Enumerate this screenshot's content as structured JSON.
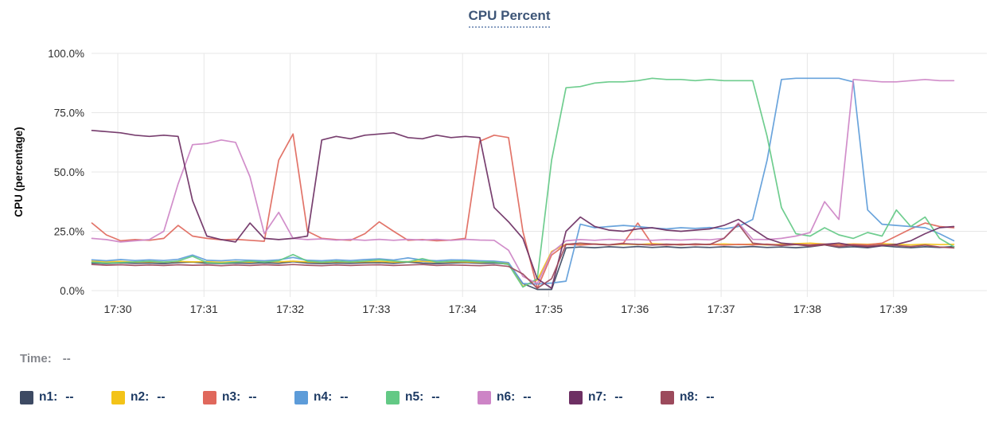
{
  "title": {
    "text": "CPU Percent"
  },
  "time_readout": {
    "label": "Time:",
    "value": "--"
  },
  "chart_data": {
    "type": "line",
    "title": "CPU Percent",
    "xlabel": "",
    "ylabel": "CPU (percentage)",
    "ylim": [
      0,
      100
    ],
    "grid": true,
    "legend_position": "bottom",
    "y_ticks": [
      {
        "label": "100.0%",
        "value": 100
      },
      {
        "label": "75.0%",
        "value": 75
      },
      {
        "label": "50.0%",
        "value": 50
      },
      {
        "label": "25.0%",
        "value": 25
      },
      {
        "label": "0.0%",
        "value": 0
      }
    ],
    "x_ticks": [
      "17:30",
      "17:31",
      "17:32",
      "17:33",
      "17:34",
      "17:35",
      "17:36",
      "17:37",
      "17:38",
      "17:39"
    ],
    "x_start_time": "17:29:40",
    "x_step_seconds": 10,
    "series": [
      {
        "name": "n1",
        "legend_value": "--",
        "color": "#3d4a63",
        "values": [
          11.6,
          11.4,
          11.7,
          11.5,
          11.6,
          11.4,
          11.8,
          12.0,
          11.5,
          11.4,
          11.6,
          11.5,
          11.7,
          11.5,
          12.2,
          11.6,
          11.4,
          11.6,
          11.5,
          11.7,
          11.8,
          11.5,
          12.0,
          11.6,
          11.4,
          11.6,
          11.8,
          11.5,
          11.6,
          11.2,
          3.0,
          0.5,
          0.5,
          18.0,
          18.4,
          18.1,
          18.5,
          18.2,
          18.6,
          18.2,
          18.5,
          18.1,
          18.4,
          18.2,
          18.5,
          18.3,
          18.6,
          18.2,
          18.4,
          18.1,
          18.5,
          19.3,
          18.2,
          18.5,
          18.1,
          18.9,
          18.4,
          18.1,
          18.5,
          18.2,
          18.6
        ]
      },
      {
        "name": "n2",
        "legend_value": "--",
        "color": "#f3c318",
        "values": [
          12.4,
          12.1,
          12.3,
          12.0,
          12.2,
          12.0,
          12.3,
          12.1,
          12.2,
          11.9,
          12.2,
          12.0,
          12.3,
          12.1,
          12.4,
          12.1,
          11.9,
          12.2,
          12.0,
          12.2,
          12.3,
          12.0,
          12.2,
          12.4,
          12.0,
          12.2,
          12.1,
          11.9,
          12.2,
          11.5,
          1.8,
          4.5,
          16.5,
          19.6,
          19.4,
          19.7,
          19.3,
          19.6,
          19.4,
          19.8,
          19.5,
          19.3,
          19.6,
          19.4,
          19.7,
          19.4,
          19.6,
          19.3,
          19.5,
          19.8,
          20.0,
          19.6,
          19.4,
          19.7,
          19.5,
          19.8,
          19.5,
          19.3,
          19.6,
          19.4,
          19.5
        ]
      },
      {
        "name": "n3",
        "legend_value": "--",
        "color": "#e0685c",
        "values": [
          28.5,
          23.5,
          21.0,
          21.5,
          21.2,
          22.0,
          27.5,
          23.0,
          22.0,
          21.4,
          21.6,
          21.2,
          20.8,
          55.0,
          66.0,
          25.0,
          22.0,
          21.5,
          21.2,
          24.0,
          29.0,
          25.0,
          21.2,
          21.5,
          21.0,
          21.3,
          22.0,
          63.0,
          65.5,
          64.5,
          25.0,
          1.0,
          15.0,
          19.5,
          19.2,
          19.6,
          19.3,
          20.0,
          28.5,
          19.5,
          19.2,
          19.6,
          19.3,
          19.6,
          19.2,
          19.5,
          19.3,
          19.6,
          19.2,
          19.5,
          19.3,
          19.6,
          19.2,
          19.5,
          19.3,
          20.0,
          23.0,
          26.0,
          28.5,
          27.0,
          26.5
        ]
      },
      {
        "name": "n4",
        "legend_value": "--",
        "color": "#5d9cd9",
        "values": [
          13.0,
          12.6,
          13.1,
          12.7,
          13.0,
          12.7,
          13.2,
          15.0,
          12.8,
          12.6,
          13.0,
          12.8,
          12.6,
          13.0,
          14.0,
          12.8,
          12.6,
          13.0,
          12.7,
          13.1,
          13.4,
          12.9,
          13.8,
          12.9,
          12.6,
          13.0,
          12.9,
          12.6,
          12.4,
          11.8,
          3.0,
          2.8,
          3.2,
          4.0,
          28.0,
          26.5,
          27.0,
          27.5,
          27.0,
          26.4,
          26.0,
          26.5,
          26.2,
          26.6,
          26.0,
          27.0,
          30.0,
          55.0,
          89.0,
          89.5,
          89.5,
          89.5,
          89.5,
          88.0,
          34.0,
          28.0,
          27.5,
          27.0,
          26.5,
          24.0,
          21.0
        ]
      },
      {
        "name": "n5",
        "legend_value": "--",
        "color": "#63c985",
        "values": [
          12.0,
          11.6,
          11.8,
          12.1,
          12.4,
          12.0,
          12.5,
          14.5,
          11.8,
          11.5,
          12.0,
          12.4,
          12.0,
          12.6,
          15.2,
          12.4,
          12.0,
          12.4,
          12.1,
          12.5,
          13.0,
          12.5,
          12.1,
          13.5,
          12.0,
          12.4,
          12.5,
          12.1,
          12.0,
          11.0,
          1.5,
          5.0,
          55.0,
          85.5,
          86.0,
          87.5,
          88.0,
          88.0,
          88.5,
          89.5,
          89.0,
          89.0,
          88.5,
          89.0,
          88.5,
          88.5,
          88.5,
          65.0,
          35.0,
          24.0,
          23.0,
          26.5,
          23.5,
          22.0,
          24.5,
          23.0,
          34.0,
          27.0,
          31.0,
          22.0,
          18.5
        ]
      },
      {
        "name": "n6",
        "legend_value": "--",
        "color": "#cd84c6",
        "values": [
          22.0,
          21.5,
          20.5,
          21.0,
          21.5,
          25.0,
          45.0,
          61.5,
          62.0,
          63.5,
          62.5,
          48.0,
          24.0,
          33.0,
          22.0,
          21.5,
          21.8,
          21.3,
          21.6,
          21.2,
          21.6,
          21.2,
          21.6,
          21.3,
          21.6,
          21.2,
          21.6,
          21.3,
          21.2,
          17.0,
          6.0,
          3.0,
          16.0,
          21.0,
          21.5,
          21.2,
          21.6,
          21.3,
          21.6,
          21.2,
          21.5,
          21.3,
          21.6,
          21.4,
          22.0,
          28.5,
          21.6,
          21.5,
          22.0,
          23.0,
          24.5,
          37.5,
          30.0,
          89.0,
          88.5,
          88.0,
          88.0,
          88.5,
          89.0,
          88.5,
          88.5
        ]
      },
      {
        "name": "n7",
        "legend_value": "--",
        "color": "#6d2f63",
        "values": [
          67.5,
          67.0,
          66.5,
          65.5,
          65.0,
          65.5,
          65.0,
          38.0,
          23.0,
          21.5,
          20.5,
          28.5,
          22.0,
          21.5,
          22.0,
          23.0,
          63.5,
          65.0,
          64.0,
          65.5,
          66.0,
          66.5,
          64.5,
          64.0,
          65.5,
          64.5,
          65.0,
          64.5,
          35.0,
          29.0,
          22.0,
          5.0,
          1.0,
          25.0,
          31.0,
          27.0,
          25.5,
          25.0,
          26.0,
          26.5,
          25.5,
          25.0,
          25.5,
          26.0,
          27.5,
          30.0,
          26.0,
          22.0,
          20.0,
          19.5,
          19.0,
          19.5,
          20.0,
          19.0,
          18.5,
          19.0,
          19.5,
          21.0,
          24.0,
          26.5,
          27.0
        ]
      },
      {
        "name": "n8",
        "legend_value": "--",
        "color": "#9c4a5c",
        "values": [
          11.0,
          10.7,
          10.9,
          10.6,
          10.8,
          10.6,
          10.9,
          10.7,
          10.8,
          10.5,
          10.8,
          10.6,
          10.9,
          10.7,
          11.0,
          10.7,
          10.5,
          10.8,
          10.6,
          10.8,
          10.9,
          10.6,
          10.8,
          11.0,
          10.6,
          10.8,
          10.7,
          10.5,
          10.8,
          10.2,
          7.0,
          1.0,
          5.0,
          19.5,
          20.0,
          19.6,
          19.3,
          19.8,
          19.5,
          19.2,
          19.6,
          19.3,
          19.7,
          19.4,
          22.0,
          28.0,
          20.0,
          19.4,
          19.0,
          19.4,
          18.8,
          19.3,
          18.6,
          19.2,
          18.8,
          19.3,
          19.0,
          18.6,
          19.2,
          18.4,
          18.0
        ]
      }
    ]
  }
}
